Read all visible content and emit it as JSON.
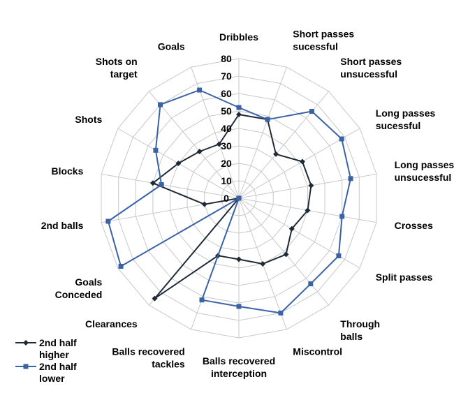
{
  "chart_data": {
    "type": "radar",
    "categories": [
      "Dribbles",
      "Short passes sucessful",
      "Short passes unsucessful",
      "Long passes sucessful",
      "Long passes unsucessful",
      "Crosses",
      "Split passes",
      "Through balls",
      "Miscontrol",
      "Balls recovered interception",
      "Balls recovered tackles",
      "Clearances",
      "Goals Conceded",
      "2nd balls",
      "Blocks",
      "Shots",
      "Shots on target",
      "Goals"
    ],
    "ticks": [
      "0",
      "10",
      "20",
      "30",
      "40",
      "50",
      "60",
      "70",
      "80"
    ],
    "rlim": [
      0,
      80
    ],
    "grid": true,
    "legend_position": "bottom-left",
    "series": [
      {
        "name": "2nd half higher",
        "color": "#1f2a36",
        "marker": "diamond",
        "values": [
          48,
          48,
          33,
          42,
          42,
          40,
          35,
          42,
          40,
          35,
          35,
          75,
          0,
          20,
          50,
          40,
          35,
          33
        ]
      },
      {
        "name": "2nd half lower",
        "color": "#3a63a6",
        "marker": "square",
        "values": [
          52,
          48,
          65,
          68,
          65,
          60,
          66,
          64,
          70,
          62,
          62,
          0,
          78,
          76,
          45,
          55,
          70,
          66
        ]
      }
    ]
  }
}
